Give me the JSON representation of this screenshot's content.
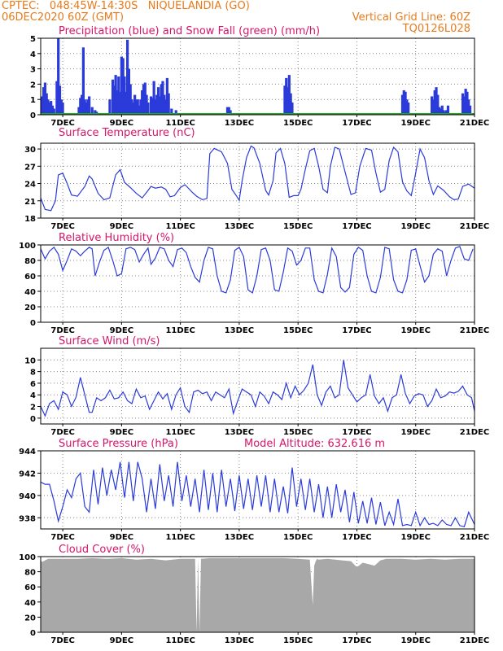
{
  "header": {
    "line1_left": "CPTEC:   048:45W-14:30S   NIQUELANDIA (GO)",
    "line2_left": "06DEC2020 60Z (GMT)",
    "line1_right": "Vertical Grid Line: 60Z",
    "line2_right": "TQ0126L028",
    "accent_color": "#e87a1a",
    "title_color": "#d6156b"
  },
  "x_axis": {
    "ticks": [
      "7DEC",
      "9DEC",
      "11DEC",
      "13DEC",
      "15DEC",
      "17DEC",
      "19DEC",
      "21DEC"
    ],
    "tick_days": [
      7,
      9,
      11,
      13,
      15,
      17,
      19,
      21
    ],
    "xlim_days": [
      6.25,
      21
    ]
  },
  "chart_data": [
    {
      "id": "precip",
      "type": "bar",
      "title": "Precipitation (blue) and Snow Fall (green) (mm/h)",
      "ylim": [
        0,
        5
      ],
      "yticks": [
        0,
        1,
        2,
        3,
        4,
        5
      ],
      "color": "#2b3bd9",
      "snow_color": "#1fa81f",
      "x": [
        6.3,
        6.35,
        6.4,
        6.45,
        6.5,
        6.55,
        6.6,
        6.65,
        6.7,
        6.8,
        6.85,
        6.9,
        6.95,
        7.0,
        7.55,
        7.6,
        7.65,
        7.7,
        7.75,
        7.8,
        7.85,
        7.9,
        8.0,
        8.1,
        8.15,
        8.6,
        8.7,
        8.75,
        8.8,
        8.85,
        8.9,
        8.95,
        9.0,
        9.05,
        9.1,
        9.15,
        9.2,
        9.25,
        9.3,
        9.35,
        9.4,
        9.45,
        9.5,
        9.55,
        9.6,
        9.65,
        9.7,
        9.75,
        9.8,
        9.85,
        9.9,
        10.0,
        10.05,
        10.1,
        10.15,
        10.2,
        10.25,
        10.3,
        10.35,
        10.4,
        10.45,
        10.5,
        10.55,
        10.6,
        10.7,
        10.85,
        12.6,
        12.65,
        12.7,
        14.55,
        14.6,
        14.65,
        14.7,
        14.75,
        14.8,
        18.55,
        18.6,
        18.65,
        18.7,
        18.75,
        19.55,
        19.6,
        19.65,
        19.7,
        19.75,
        19.8,
        19.85,
        19.9,
        19.95,
        20.0,
        20.05,
        20.1,
        20.6,
        20.65,
        20.7,
        20.75,
        20.8,
        20.85
      ],
      "values": [
        1.2,
        1.8,
        2.1,
        1.4,
        1.0,
        0.8,
        0.9,
        0.6,
        0.4,
        2.2,
        5.0,
        1.9,
        1.0,
        0.8,
        0.5,
        1.1,
        1.3,
        4.4,
        1.0,
        0.8,
        1.0,
        1.2,
        0.5,
        0.3,
        0.2,
        1.0,
        2.3,
        1.9,
        2.6,
        1.6,
        2.5,
        1.5,
        3.8,
        3.7,
        2.5,
        1.5,
        4.9,
        3.0,
        2.0,
        1.0,
        0.8,
        1.3,
        1.0,
        1.0,
        0.6,
        1.0,
        1.6,
        2.0,
        2.1,
        1.3,
        0.8,
        1.2,
        1.1,
        2.2,
        1.0,
        1.3,
        1.8,
        1.2,
        2.0,
        2.2,
        1.3,
        1.0,
        2.4,
        1.4,
        0.4,
        0.3,
        0.5,
        0.5,
        0.3,
        1.9,
        2.4,
        1.8,
        2.6,
        1.4,
        0.8,
        1.3,
        1.6,
        1.5,
        1.0,
        0.8,
        1.2,
        1.0,
        1.6,
        1.8,
        1.3,
        0.5,
        0.4,
        0.6,
        0.3,
        0.2,
        0.3,
        0.6,
        1.4,
        1.2,
        1.7,
        1.5,
        1.0,
        0.6
      ],
      "snowfall": 0
    },
    {
      "id": "temp",
      "type": "line",
      "title": "Surface Temperature (nC)",
      "ylim": [
        18,
        31
      ],
      "yticks": [
        18,
        21,
        24,
        27,
        30
      ],
      "color": "#2b3bd9",
      "x": [
        6.25,
        6.4,
        6.6,
        6.75,
        6.85,
        7.0,
        7.15,
        7.3,
        7.5,
        7.75,
        7.9,
        8.0,
        8.2,
        8.4,
        8.6,
        8.8,
        8.95,
        9.1,
        9.3,
        9.5,
        9.7,
        9.9,
        10.0,
        10.15,
        10.35,
        10.5,
        10.65,
        10.8,
        11.0,
        11.15,
        11.25,
        11.4,
        11.55,
        11.75,
        11.9,
        12.0,
        12.15,
        12.4,
        12.6,
        12.75,
        12.9,
        13.0,
        13.1,
        13.25,
        13.4,
        13.5,
        13.7,
        13.9,
        14.0,
        14.15,
        14.25,
        14.4,
        14.55,
        14.7,
        14.85,
        15.0,
        15.1,
        15.25,
        15.4,
        15.55,
        15.7,
        15.85,
        16.0,
        16.1,
        16.25,
        16.4,
        16.6,
        16.8,
        16.95,
        17.1,
        17.3,
        17.5,
        17.65,
        17.8,
        17.95,
        18.1,
        18.25,
        18.4,
        18.55,
        18.7,
        18.85,
        19.0,
        19.15,
        19.3,
        19.45,
        19.6,
        19.75,
        19.95,
        20.15,
        20.3,
        20.45,
        20.6,
        20.8,
        21.0
      ],
      "values": [
        21.5,
        19.5,
        19.3,
        21.0,
        25.5,
        25.8,
        24.0,
        22.0,
        21.8,
        23.5,
        25.3,
        24.8,
        22.3,
        21.2,
        21.5,
        25.5,
        26.4,
        24.2,
        23.3,
        22.3,
        21.5,
        22.8,
        23.5,
        23.2,
        23.4,
        23.0,
        21.7,
        21.9,
        23.3,
        23.8,
        23.3,
        22.5,
        21.8,
        21.2,
        21.4,
        29.2,
        30.1,
        29.5,
        27.5,
        23.0,
        21.9,
        21.1,
        24.5,
        28.5,
        30.5,
        30.2,
        27.5,
        22.8,
        22.0,
        24.5,
        29.3,
        30.1,
        27.5,
        21.6,
        21.9,
        21.9,
        23.0,
        26.5,
        29.7,
        30.1,
        27.0,
        23.0,
        22.4,
        27.0,
        30.3,
        30.0,
        26.0,
        22.1,
        22.4,
        27.0,
        30.1,
        29.8,
        25.8,
        22.5,
        23.0,
        28.0,
        30.3,
        29.5,
        24.3,
        22.7,
        21.9,
        25.8,
        30.0,
        28.5,
        24.5,
        22.1,
        23.6,
        22.8,
        21.7,
        21.2,
        21.3,
        23.5,
        23.9,
        23.2
      ]
    },
    {
      "id": "rh",
      "type": "line",
      "title": "Relative Humidity (%)",
      "ylim": [
        0,
        100
      ],
      "yticks": [
        0,
        20,
        40,
        60,
        80,
        100
      ],
      "color": "#2b3bd9",
      "x": [
        6.25,
        6.4,
        6.55,
        6.7,
        6.85,
        7.0,
        7.15,
        7.3,
        7.45,
        7.6,
        7.75,
        7.9,
        8.0,
        8.1,
        8.25,
        8.4,
        8.55,
        8.7,
        8.85,
        9.0,
        9.15,
        9.3,
        9.45,
        9.6,
        9.75,
        9.9,
        10.0,
        10.15,
        10.3,
        10.45,
        10.6,
        10.75,
        10.9,
        11.05,
        11.2,
        11.35,
        11.5,
        11.65,
        11.8,
        11.95,
        12.1,
        12.25,
        12.4,
        12.55,
        12.7,
        12.85,
        13.0,
        13.15,
        13.3,
        13.45,
        13.6,
        13.75,
        13.9,
        14.05,
        14.2,
        14.35,
        14.5,
        14.65,
        14.8,
        14.95,
        15.1,
        15.25,
        15.4,
        15.55,
        15.7,
        15.85,
        16.0,
        16.15,
        16.3,
        16.45,
        16.6,
        16.75,
        16.9,
        17.05,
        17.2,
        17.35,
        17.5,
        17.65,
        17.8,
        17.95,
        18.1,
        18.25,
        18.4,
        18.55,
        18.7,
        18.85,
        19.0,
        19.15,
        19.3,
        19.45,
        19.6,
        19.75,
        19.9,
        20.05,
        20.2,
        20.35,
        20.5,
        20.65,
        20.8,
        20.95
      ],
      "values": [
        95,
        82,
        92,
        97,
        88,
        67,
        80,
        95,
        92,
        86,
        92,
        97,
        95,
        60,
        78,
        93,
        97,
        80,
        60,
        63,
        95,
        97,
        94,
        78,
        88,
        96,
        75,
        83,
        97,
        95,
        80,
        72,
        94,
        96,
        90,
        72,
        58,
        52,
        80,
        97,
        95,
        60,
        40,
        38,
        55,
        93,
        97,
        85,
        42,
        38,
        60,
        94,
        96,
        80,
        42,
        40,
        65,
        96,
        92,
        74,
        80,
        96,
        96,
        55,
        40,
        38,
        62,
        96,
        85,
        45,
        39,
        45,
        88,
        97,
        93,
        60,
        40,
        38,
        58,
        97,
        95,
        55,
        40,
        38,
        55,
        93,
        95,
        73,
        52,
        60,
        88,
        95,
        92,
        60,
        80,
        96,
        98,
        82,
        80,
        95
      ]
    },
    {
      "id": "wind",
      "type": "line",
      "title": "Surface Wind (m/s)",
      "ylim": [
        -1,
        12
      ],
      "yticks": [
        0,
        2,
        4,
        6,
        8,
        10
      ],
      "color": "#2b3bd9",
      "x": [
        6.25,
        6.4,
        6.55,
        6.7,
        6.85,
        7.0,
        7.15,
        7.3,
        7.45,
        7.6,
        7.75,
        7.9,
        8.0,
        8.15,
        8.3,
        8.45,
        8.6,
        8.75,
        8.9,
        9.05,
        9.2,
        9.35,
        9.5,
        9.65,
        9.8,
        9.95,
        10.1,
        10.25,
        10.4,
        10.55,
        10.7,
        10.85,
        11.0,
        11.15,
        11.3,
        11.45,
        11.6,
        11.75,
        11.9,
        12.05,
        12.2,
        12.35,
        12.5,
        12.65,
        12.8,
        12.95,
        13.1,
        13.25,
        13.4,
        13.55,
        13.7,
        13.85,
        14.0,
        14.15,
        14.3,
        14.45,
        14.6,
        14.75,
        14.9,
        15.05,
        15.2,
        15.35,
        15.5,
        15.65,
        15.8,
        15.95,
        16.1,
        16.25,
        16.4,
        16.55,
        16.7,
        16.85,
        17.0,
        17.15,
        17.3,
        17.45,
        17.6,
        17.75,
        17.9,
        18.05,
        18.2,
        18.35,
        18.5,
        18.65,
        18.8,
        18.95,
        19.1,
        19.25,
        19.4,
        19.55,
        19.7,
        19.85,
        20.0,
        20.15,
        20.3,
        20.45,
        20.6,
        20.75,
        20.9,
        21.0
      ],
      "values": [
        2.0,
        0.4,
        2.5,
        3.0,
        1.5,
        4.5,
        4.0,
        2.0,
        3.6,
        7.0,
        4.0,
        1.0,
        1.0,
        3.5,
        3.0,
        3.5,
        4.8,
        3.3,
        3.5,
        4.5,
        3.0,
        2.5,
        5.0,
        3.5,
        3.8,
        1.5,
        3.0,
        4.5,
        3.3,
        4.2,
        1.5,
        4.0,
        5.2,
        2.0,
        1.0,
        4.5,
        4.8,
        4.2,
        4.5,
        3.0,
        4.5,
        4.0,
        3.5,
        5.0,
        0.8,
        3.0,
        5.0,
        4.5,
        4.0,
        2.0,
        4.5,
        3.8,
        2.5,
        4.5,
        4.0,
        3.2,
        6.0,
        3.5,
        5.5,
        4.0,
        4.8,
        6.0,
        9.2,
        4.0,
        2.2,
        4.5,
        5.5,
        3.5,
        4.0,
        10.0,
        5.2,
        4.0,
        2.8,
        3.5,
        4.0,
        7.5,
        3.8,
        2.5,
        3.5,
        1.2,
        3.5,
        4.0,
        7.5,
        4.2,
        2.5,
        3.8,
        4.2,
        4.0,
        2.0,
        3.0,
        5.0,
        3.5,
        3.8,
        4.5,
        4.3,
        4.6,
        5.5,
        4.0,
        3.5,
        1.2
      ]
    },
    {
      "id": "pres",
      "type": "line",
      "title": "Surface Pressure (hPa)",
      "annotation": "Model Altitude: 632.616  m",
      "ylim": [
        937,
        944
      ],
      "yticks": [
        938,
        940,
        942,
        944
      ],
      "color": "#2b3bd9",
      "x": [
        6.25,
        6.4,
        6.55,
        6.7,
        6.85,
        7.0,
        7.15,
        7.3,
        7.45,
        7.6,
        7.75,
        7.9,
        8.05,
        8.2,
        8.35,
        8.5,
        8.65,
        8.8,
        8.95,
        9.1,
        9.25,
        9.4,
        9.55,
        9.7,
        9.85,
        10.0,
        10.15,
        10.3,
        10.45,
        10.6,
        10.75,
        10.9,
        11.05,
        11.2,
        11.35,
        11.5,
        11.65,
        11.8,
        11.95,
        12.1,
        12.25,
        12.4,
        12.55,
        12.7,
        12.85,
        13.0,
        13.15,
        13.3,
        13.45,
        13.6,
        13.75,
        13.9,
        14.05,
        14.2,
        14.35,
        14.5,
        14.65,
        14.8,
        14.95,
        15.1,
        15.25,
        15.4,
        15.55,
        15.7,
        15.85,
        16.0,
        16.15,
        16.3,
        16.45,
        16.6,
        16.75,
        16.9,
        17.05,
        17.2,
        17.35,
        17.5,
        17.65,
        17.8,
        17.95,
        18.1,
        18.25,
        18.4,
        18.55,
        18.7,
        18.85,
        19.0,
        19.15,
        19.3,
        19.45,
        19.6,
        19.75,
        19.9,
        20.05,
        20.2,
        20.35,
        20.5,
        20.65,
        20.8,
        21.0
      ],
      "values": [
        941.2,
        941.0,
        941.0,
        939.5,
        937.7,
        939.0,
        940.5,
        939.8,
        941.5,
        942.0,
        939.0,
        938.5,
        942.3,
        939.2,
        942.5,
        940.0,
        942.3,
        940.5,
        943.0,
        939.8,
        943.0,
        939.5,
        943.0,
        941.5,
        938.5,
        941.5,
        938.8,
        942.8,
        939.5,
        941.8,
        939.0,
        943.0,
        939.5,
        941.8,
        939.0,
        941.5,
        938.5,
        942.3,
        938.7,
        942.0,
        938.5,
        942.3,
        939.0,
        941.5,
        938.6,
        941.8,
        938.8,
        941.5,
        938.7,
        941.8,
        939.0,
        941.8,
        938.5,
        941.5,
        938.5,
        940.8,
        938.4,
        942.5,
        939.0,
        941.5,
        938.7,
        941.5,
        938.5,
        941.0,
        938.0,
        940.8,
        938.0,
        941.0,
        938.5,
        940.5,
        937.6,
        940.3,
        937.5,
        939.5,
        937.5,
        939.8,
        937.4,
        939.4,
        937.3,
        938.5,
        937.4,
        939.7,
        937.3,
        937.4,
        937.3,
        938.5,
        937.3,
        938.0,
        937.4,
        937.5,
        937.3,
        937.8,
        937.4,
        937.3,
        938.0,
        937.3,
        937.2,
        938.5,
        937.4
      ]
    },
    {
      "id": "cloud",
      "type": "area",
      "title": "Cloud Cover (%)",
      "ylim": [
        0,
        100
      ],
      "yticks": [
        0,
        20,
        40,
        60,
        80,
        100
      ],
      "color": "#a8a8a8",
      "x": [
        6.25,
        6.3,
        6.5,
        7.0,
        7.5,
        8.0,
        8.5,
        9.0,
        9.5,
        10.0,
        10.5,
        11.0,
        11.5,
        11.55,
        11.6,
        11.65,
        11.7,
        12.0,
        12.5,
        13.0,
        13.5,
        14.0,
        14.5,
        15.0,
        15.4,
        15.5,
        15.55,
        15.6,
        15.65,
        15.7,
        16.0,
        16.5,
        16.8,
        17.0,
        17.2,
        17.4,
        17.6,
        17.8,
        18.0,
        18.5,
        19.0,
        19.5,
        20.0,
        20.5,
        21.0
      ],
      "values": [
        95,
        93,
        97,
        97,
        97,
        98,
        97,
        98,
        96,
        97,
        95,
        97,
        97,
        0,
        98,
        0,
        97,
        98,
        98,
        98,
        98,
        98,
        98,
        97,
        96,
        36,
        88,
        94,
        97,
        96,
        97,
        95,
        94,
        86,
        92,
        90,
        88,
        95,
        97,
        97,
        96,
        97,
        96,
        97,
        97
      ]
    }
  ]
}
